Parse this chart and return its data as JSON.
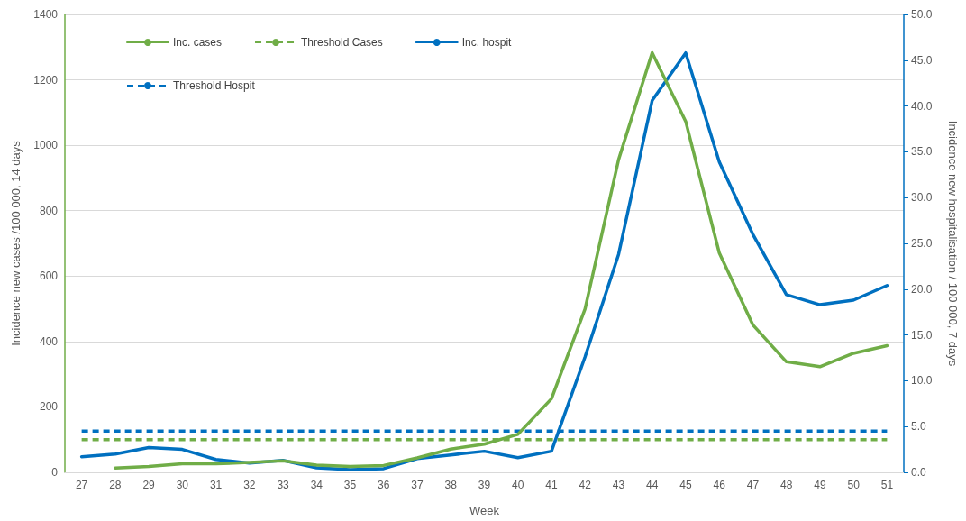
{
  "chart_data": {
    "type": "line",
    "xlabel": "Week",
    "ylabel": "Incidence new cases /100 000, 14 days",
    "y2label": "Incidence new hospitalisation / 100 000, 7 days",
    "categories": [
      "27",
      "28",
      "29",
      "30",
      "31",
      "32",
      "33",
      "34",
      "35",
      "36",
      "37",
      "38",
      "39",
      "40",
      "41",
      "42",
      "43",
      "44",
      "45",
      "46",
      "47",
      "48",
      "49",
      "50",
      "51"
    ],
    "series": [
      {
        "name": "Inc. cases",
        "color": "#70ad47",
        "line_style": "solid",
        "values": [
          null,
          13,
          18,
          26,
          26,
          30,
          35,
          22,
          18,
          21,
          44,
          71,
          86,
          116,
          225,
          499,
          956,
          1283,
          1073,
          671,
          451,
          338,
          323,
          364,
          387
        ]
      },
      {
        "name": "Threshold Cases",
        "color": "#70ad47",
        "line_style": "dashed",
        "values": [
          100,
          100,
          100,
          100,
          100,
          100,
          100,
          100,
          100,
          100,
          100,
          100,
          100,
          100,
          100,
          100,
          100,
          100,
          100,
          100,
          100,
          100,
          100,
          100,
          100
        ]
      },
      {
        "name": "Inc. hospit",
        "color": "#0070c0",
        "line_style": "solid",
        "axis": "y2",
        "values": [
          1.7,
          2.0,
          2.7,
          2.5,
          1.4,
          1.0,
          1.3,
          0.5,
          0.3,
          0.4,
          1.5,
          1.9,
          2.3,
          1.6,
          2.3,
          12.6,
          23.8,
          40.6,
          45.8,
          33.9,
          26.0,
          19.4,
          18.3,
          18.8,
          20.4
        ]
      },
      {
        "name": "Threshold Hospit",
        "color": "#0070c0",
        "line_style": "dashed",
        "axis": "y2",
        "values": [
          4.5,
          4.5,
          4.5,
          4.5,
          4.5,
          4.5,
          4.5,
          4.5,
          4.5,
          4.5,
          4.5,
          4.5,
          4.5,
          4.5,
          4.5,
          4.5,
          4.5,
          4.5,
          4.5,
          4.5,
          4.5,
          4.5,
          4.5,
          4.5,
          4.5
        ]
      }
    ],
    "ylim": [
      0,
      1400
    ],
    "yticks": [
      0,
      200,
      400,
      600,
      800,
      1000,
      1200,
      1400
    ],
    "y2lim": [
      0,
      50
    ],
    "y2ticks": [
      {
        "value": 0,
        "label": "0.0"
      },
      {
        "value": 5,
        "label": "5.0"
      },
      {
        "value": 10,
        "label": "10.0"
      },
      {
        "value": 15,
        "label": "15.0"
      },
      {
        "value": 20,
        "label": "20.0"
      },
      {
        "value": 25,
        "label": "25.0"
      },
      {
        "value": 30,
        "label": "30.0"
      },
      {
        "value": 35,
        "label": "35.0"
      },
      {
        "value": 40,
        "label": "40.0"
      },
      {
        "value": 45,
        "label": "45.0"
      },
      {
        "value": 50,
        "label": "50.0"
      }
    ],
    "grid": "y",
    "legend": "top left",
    "marker": "none"
  }
}
